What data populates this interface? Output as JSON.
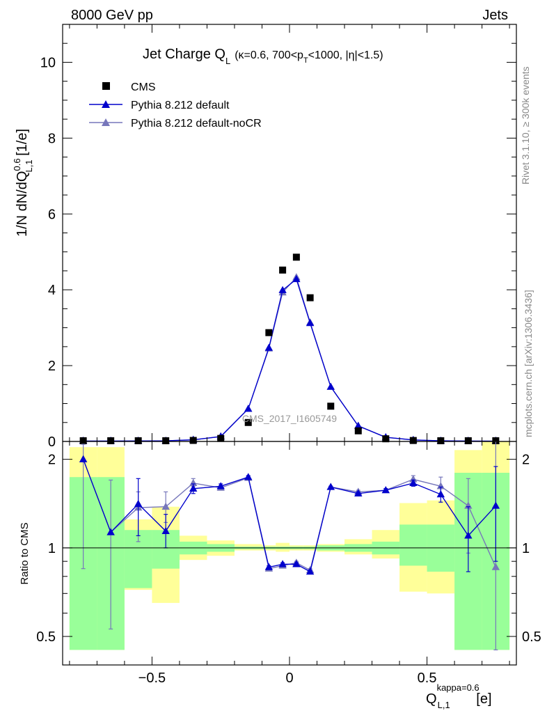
{
  "header": {
    "left": "8000 GeV pp",
    "right": "Jets"
  },
  "side_labels": {
    "rivet": "Rivet 3.1.10, ≥ 300k events",
    "mcplots": "mcplots.cern.ch [arXiv:1306.3436]"
  },
  "watermark": "CMS_2017_I1605749",
  "chart_data": {
    "type": "scatter",
    "title": {
      "main": "Jet Charge Q",
      "main_sub": "L",
      "params_a": "(κ=0.6, 700<p",
      "params_sub": "T",
      "params_b": "<1000, |η|<1.5)"
    },
    "y_axis": {
      "label_a": "1/N dN/dQ",
      "label_sup": "0.6",
      "label_sub": "L,1",
      "label_b": " [1/e]",
      "range": [
        0,
        11
      ],
      "ticks": [
        0,
        2,
        4,
        6,
        8,
        10
      ],
      "tick_labels": [
        "0",
        "2",
        "4",
        "6",
        "8",
        "10"
      ]
    },
    "x_axis": {
      "label_a": "Q",
      "label_sup": "kappa=0.6",
      "label_sub": "L,1",
      "label_b": " [e]",
      "range": [
        -0.825,
        0.825
      ],
      "ticks": [
        -0.5,
        0,
        0.5
      ],
      "tick_labels": [
        "−0.5",
        "0",
        "0.5"
      ]
    },
    "x": [
      -0.75,
      -0.65,
      -0.55,
      -0.45,
      -0.35,
      -0.25,
      -0.15,
      -0.075,
      -0.025,
      0.025,
      0.075,
      0.15,
      0.25,
      0.35,
      0.45,
      0.55,
      0.65,
      0.75
    ],
    "bin_edges": [
      -0.8,
      -0.7,
      -0.6,
      -0.5,
      -0.4,
      -0.3,
      -0.2,
      -0.1,
      -0.05,
      0.0,
      0.05,
      0.1,
      0.2,
      0.3,
      0.4,
      0.5,
      0.6,
      0.7,
      0.8
    ],
    "legend": [
      {
        "label": "CMS",
        "color": "#000000",
        "marker": "square"
      },
      {
        "label": "Pythia 8.212 default",
        "color": "#0000cc",
        "marker": "triangle"
      },
      {
        "label": "Pythia 8.212 default-noCR",
        "color": "#7777bb",
        "marker": "triangle"
      }
    ],
    "series": [
      {
        "name": "CMS",
        "color": "#000000",
        "values": [
          0.005,
          0.006,
          0.008,
          0.013,
          0.027,
          0.08,
          0.5,
          2.87,
          4.52,
          4.86,
          3.79,
          0.93,
          0.28,
          0.07,
          0.025,
          0.012,
          0.007,
          0.005
        ]
      },
      {
        "name": "Pythia 8.212 default",
        "color": "#0000cc",
        "values": [
          0.01,
          0.009,
          0.012,
          0.018,
          0.043,
          0.13,
          0.86,
          2.47,
          3.99,
          4.28,
          3.12,
          1.44,
          0.41,
          0.11,
          0.04,
          0.018,
          0.01,
          0.008
        ]
      },
      {
        "name": "Pythia 8.212 default-noCR",
        "color": "#7777bb",
        "values": [
          0.01,
          0.009,
          0.012,
          0.018,
          0.043,
          0.13,
          0.86,
          2.45,
          3.93,
          4.33,
          3.14,
          1.44,
          0.41,
          0.11,
          0.04,
          0.018,
          0.01,
          0.008
        ]
      }
    ],
    "ratio_panel": {
      "ylabel": "Ratio to CMS",
      "yscale": "log",
      "range": [
        0.4,
        2.3
      ],
      "ticks": [
        0.5,
        1,
        2
      ],
      "tick_labels": [
        "0.5",
        "1",
        "2"
      ],
      "band_green": {
        "color": "#99ff99",
        "low": [
          0.45,
          0.45,
          0.73,
          0.85,
          0.95,
          0.97,
          0.99,
          0.99,
          0.99,
          0.99,
          0.99,
          0.98,
          0.97,
          0.95,
          0.87,
          0.83,
          0.45,
          0.45
        ],
        "high": [
          1.74,
          1.74,
          1.15,
          1.15,
          1.05,
          1.03,
          1.01,
          1.01,
          1.01,
          1.01,
          1.01,
          1.02,
          1.03,
          1.05,
          1.2,
          1.2,
          1.8,
          1.8
        ]
      },
      "band_yellow": {
        "color": "#ffff99",
        "low": [
          0.45,
          0.45,
          0.72,
          0.65,
          0.91,
          0.94,
          0.98,
          0.98,
          0.97,
          0.98,
          0.98,
          0.97,
          0.95,
          0.92,
          0.71,
          0.7,
          0.45,
          0.45
        ],
        "high": [
          2.2,
          2.2,
          1.25,
          1.38,
          1.1,
          1.06,
          1.03,
          1.02,
          1.04,
          1.02,
          1.02,
          1.03,
          1.07,
          1.15,
          1.42,
          1.45,
          2.15,
          2.3
        ]
      },
      "series": [
        {
          "name": "Pythia 8.212 default",
          "color": "#0000cc",
          "values": [
            2.0,
            1.13,
            1.41,
            1.14,
            1.59,
            1.62,
            1.74,
            0.86,
            0.88,
            0.88,
            0.83,
            1.61,
            1.53,
            1.57,
            1.66,
            1.52,
            1.1,
            1.39
          ],
          "err_low": [
            2.0,
            1.13,
            1.1,
            1.0,
            1.53,
            1.59,
            1.72,
            0.85,
            0.87,
            0.87,
            0.82,
            1.6,
            1.51,
            1.55,
            1.62,
            1.43,
            0.83,
            0.9
          ],
          "err_high": [
            2.0,
            1.13,
            1.72,
            1.3,
            1.65,
            1.65,
            1.76,
            0.87,
            0.89,
            0.89,
            0.84,
            1.62,
            1.55,
            1.59,
            1.7,
            1.61,
            1.38,
            1.89
          ]
        },
        {
          "name": "Pythia 8.212 default-noCR",
          "color": "#7777bb",
          "values": [
            2.0,
            1.13,
            1.37,
            1.38,
            1.66,
            1.6,
            1.73,
            0.85,
            0.87,
            0.89,
            0.84,
            1.61,
            1.55,
            1.57,
            1.71,
            1.62,
            1.39,
            0.86
          ],
          "err_low": [
            0.85,
            0.53,
            1.05,
            1.22,
            1.62,
            1.58,
            1.71,
            0.84,
            0.86,
            0.88,
            0.83,
            1.6,
            1.53,
            1.55,
            1.66,
            1.52,
            0.96,
            0.45
          ],
          "err_high": [
            2.25,
            1.7,
            1.55,
            1.55,
            1.72,
            1.63,
            1.75,
            0.86,
            0.88,
            0.9,
            0.85,
            1.62,
            1.57,
            1.59,
            1.76,
            1.74,
            1.72,
            2.3
          ]
        }
      ]
    }
  }
}
